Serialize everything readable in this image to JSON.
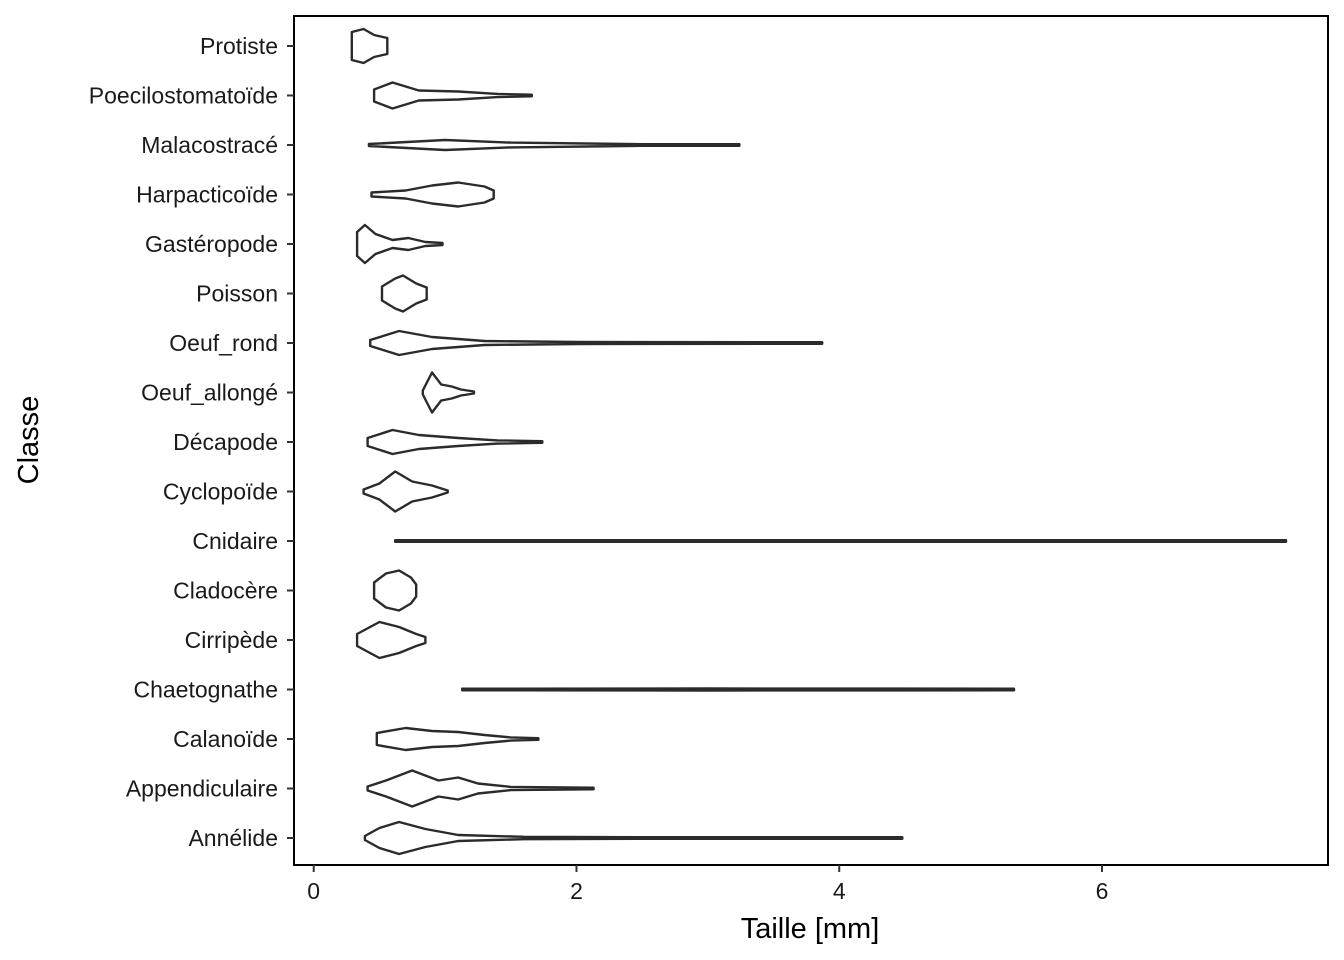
{
  "chart_data": {
    "type": "violin",
    "orientation": "horizontal",
    "xlabel": "Taille  [mm]",
    "ylabel": "Classe",
    "xlim": [
      -0.15,
      7.72
    ],
    "xticks": [
      0,
      2,
      4,
      6
    ],
    "grid": false,
    "categories": [
      "Annélide",
      "Appendiculaire",
      "Calanoïde",
      "Chaetognathe",
      "Cirripède",
      "Cladocère",
      "Cnidaire",
      "Cyclopoïde",
      "Décapode",
      "Oeuf_allongé",
      "Oeuf_rond",
      "Poisson",
      "Gastéropode",
      "Harpacticoïde",
      "Malacostracé",
      "Poecilostomatoïde",
      "Protiste"
    ],
    "series": [
      {
        "category": "Annélide",
        "min": 0.39,
        "max": 4.48,
        "density": [
          [
            0.39,
            0.1
          ],
          [
            0.5,
            0.5
          ],
          [
            0.65,
            0.8
          ],
          [
            0.85,
            0.45
          ],
          [
            1.1,
            0.15
          ],
          [
            1.6,
            0.06
          ],
          [
            2.5,
            0.04
          ],
          [
            3.5,
            0.02
          ],
          [
            4.48,
            0.02
          ]
        ]
      },
      {
        "category": "Appendiculaire",
        "min": 0.41,
        "max": 2.13,
        "density": [
          [
            0.41,
            0.1
          ],
          [
            0.55,
            0.4
          ],
          [
            0.75,
            0.9
          ],
          [
            0.95,
            0.4
          ],
          [
            1.1,
            0.55
          ],
          [
            1.25,
            0.25
          ],
          [
            1.5,
            0.08
          ],
          [
            2.13,
            0.02
          ]
        ]
      },
      {
        "category": "Calanoïde",
        "min": 0.48,
        "max": 1.71,
        "density": [
          [
            0.48,
            0.3
          ],
          [
            0.7,
            0.55
          ],
          [
            0.9,
            0.4
          ],
          [
            1.1,
            0.35
          ],
          [
            1.3,
            0.2
          ],
          [
            1.5,
            0.08
          ],
          [
            1.71,
            0.03
          ]
        ]
      },
      {
        "category": "Chaetognathe",
        "min": 1.13,
        "max": 5.33,
        "density": [
          [
            1.13,
            0.03
          ],
          [
            3.0,
            0.05
          ],
          [
            5.33,
            0.03
          ]
        ]
      },
      {
        "category": "Cirripède",
        "min": 0.33,
        "max": 0.85,
        "density": [
          [
            0.33,
            0.3
          ],
          [
            0.5,
            0.9
          ],
          [
            0.65,
            0.65
          ],
          [
            0.78,
            0.3
          ],
          [
            0.85,
            0.15
          ]
        ]
      },
      {
        "category": "Cladocère",
        "min": 0.46,
        "max": 0.78,
        "density": [
          [
            0.46,
            0.4
          ],
          [
            0.55,
            0.85
          ],
          [
            0.65,
            1.0
          ],
          [
            0.74,
            0.65
          ],
          [
            0.78,
            0.3
          ]
        ]
      },
      {
        "category": "Cnidaire",
        "min": 0.62,
        "max": 7.4,
        "density": [
          [
            0.62,
            0.04
          ],
          [
            4.0,
            0.04
          ],
          [
            7.4,
            0.04
          ]
        ]
      },
      {
        "category": "Cyclopoïde",
        "min": 0.38,
        "max": 1.02,
        "density": [
          [
            0.38,
            0.1
          ],
          [
            0.5,
            0.4
          ],
          [
            0.62,
            1.0
          ],
          [
            0.75,
            0.5
          ],
          [
            0.9,
            0.3
          ],
          [
            1.02,
            0.05
          ]
        ]
      },
      {
        "category": "Décapode",
        "min": 0.41,
        "max": 1.74,
        "density": [
          [
            0.41,
            0.2
          ],
          [
            0.6,
            0.6
          ],
          [
            0.8,
            0.35
          ],
          [
            1.1,
            0.2
          ],
          [
            1.4,
            0.08
          ],
          [
            1.74,
            0.03
          ]
        ]
      },
      {
        "category": "Oeuf_allongé",
        "min": 0.83,
        "max": 1.22,
        "density": [
          [
            0.83,
            0.1
          ],
          [
            0.9,
            1.0
          ],
          [
            0.97,
            0.4
          ],
          [
            1.05,
            0.3
          ],
          [
            1.12,
            0.15
          ],
          [
            1.22,
            0.05
          ]
        ]
      },
      {
        "category": "Oeuf_rond",
        "min": 0.43,
        "max": 3.87,
        "density": [
          [
            0.43,
            0.15
          ],
          [
            0.65,
            0.6
          ],
          [
            0.9,
            0.3
          ],
          [
            1.3,
            0.1
          ],
          [
            2.0,
            0.05
          ],
          [
            3.87,
            0.02
          ]
        ]
      },
      {
        "category": "Poisson",
        "min": 0.52,
        "max": 0.86,
        "density": [
          [
            0.52,
            0.35
          ],
          [
            0.62,
            0.75
          ],
          [
            0.68,
            0.9
          ],
          [
            0.78,
            0.5
          ],
          [
            0.86,
            0.3
          ]
        ]
      },
      {
        "category": "Gastéropode",
        "min": 0.33,
        "max": 0.98,
        "density": [
          [
            0.33,
            0.6
          ],
          [
            0.39,
            0.95
          ],
          [
            0.47,
            0.5
          ],
          [
            0.6,
            0.2
          ],
          [
            0.72,
            0.3
          ],
          [
            0.85,
            0.1
          ],
          [
            0.98,
            0.05
          ]
        ]
      },
      {
        "category": "Harpacticoïde",
        "min": 0.44,
        "max": 1.37,
        "density": [
          [
            0.44,
            0.1
          ],
          [
            0.7,
            0.2
          ],
          [
            0.9,
            0.45
          ],
          [
            1.1,
            0.6
          ],
          [
            1.3,
            0.4
          ],
          [
            1.37,
            0.2
          ]
        ]
      },
      {
        "category": "Malacostracé",
        "min": 0.42,
        "max": 3.24,
        "density": [
          [
            0.42,
            0.05
          ],
          [
            1.0,
            0.25
          ],
          [
            1.5,
            0.12
          ],
          [
            2.5,
            0.04
          ],
          [
            3.24,
            0.02
          ]
        ]
      },
      {
        "category": "Poecilostomatoïde",
        "min": 0.46,
        "max": 1.66,
        "density": [
          [
            0.46,
            0.3
          ],
          [
            0.6,
            0.65
          ],
          [
            0.8,
            0.25
          ],
          [
            1.1,
            0.2
          ],
          [
            1.4,
            0.08
          ],
          [
            1.66,
            0.03
          ]
        ]
      },
      {
        "category": "Protiste",
        "min": 0.29,
        "max": 0.56,
        "density": [
          [
            0.29,
            0.7
          ],
          [
            0.38,
            0.85
          ],
          [
            0.46,
            0.55
          ],
          [
            0.56,
            0.4
          ]
        ]
      }
    ]
  }
}
